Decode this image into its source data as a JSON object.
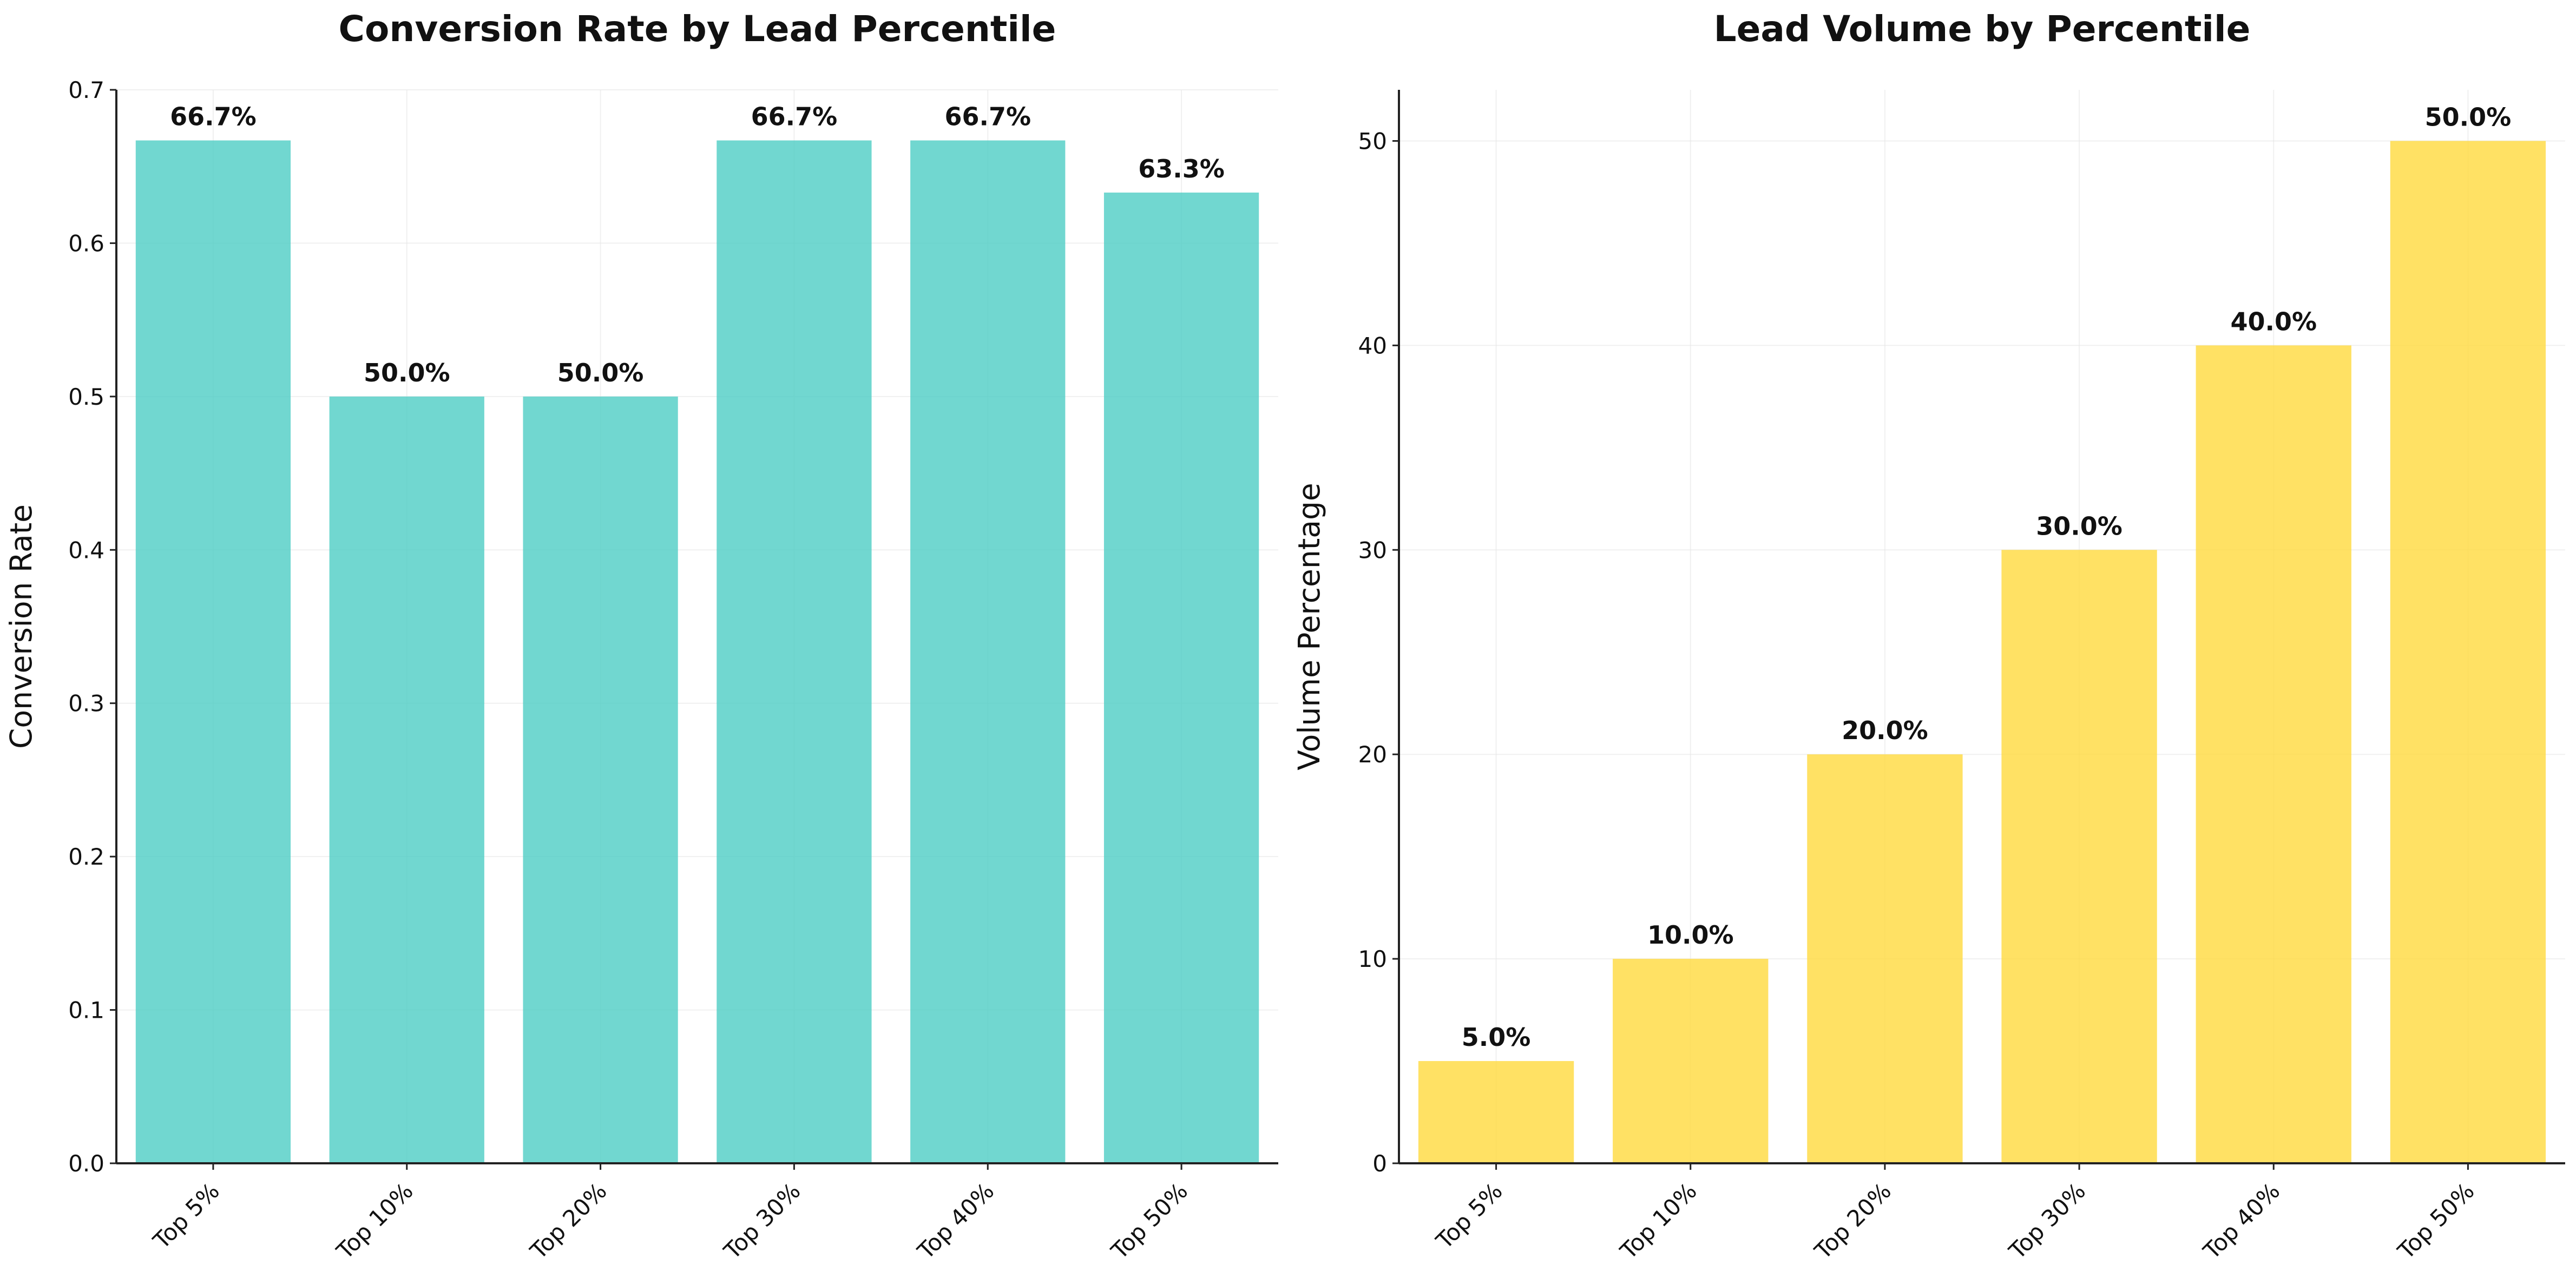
{
  "chart_data": [
    {
      "type": "bar",
      "title": "Conversion Rate by Lead Percentile",
      "xlabel": "",
      "ylabel": "Conversion Rate",
      "categories": [
        "Top 5%",
        "Top 10%",
        "Top 20%",
        "Top 30%",
        "Top 40%",
        "Top 50%"
      ],
      "values": [
        0.667,
        0.5,
        0.5,
        0.667,
        0.667,
        0.633
      ],
      "data_labels": [
        "66.7%",
        "50.0%",
        "50.0%",
        "66.7%",
        "66.7%",
        "63.3%"
      ],
      "ylim": [
        0,
        0.7
      ],
      "yticks": [
        0.0,
        0.1,
        0.2,
        0.3,
        0.4,
        0.5,
        0.6,
        0.7
      ],
      "ytick_labels": [
        "0.0",
        "0.1",
        "0.2",
        "0.3",
        "0.4",
        "0.5",
        "0.6",
        "0.7"
      ],
      "color": "#4ecdc4",
      "grid": true
    },
    {
      "type": "bar",
      "title": "Lead Volume by Percentile",
      "xlabel": "",
      "ylabel": "Volume Percentage",
      "categories": [
        "Top 5%",
        "Top 10%",
        "Top 20%",
        "Top 30%",
        "Top 40%",
        "Top 50%"
      ],
      "values": [
        5,
        10,
        20,
        30,
        40,
        50
      ],
      "data_labels": [
        "5.0%",
        "10.0%",
        "20.0%",
        "30.0%",
        "40.0%",
        "50.0%"
      ],
      "ylim": [
        0,
        52.5
      ],
      "yticks": [
        0,
        10,
        20,
        30,
        40,
        50
      ],
      "ytick_labels": [
        "0",
        "10",
        "20",
        "30",
        "40",
        "50"
      ],
      "color": "#ffd93d",
      "grid": true
    }
  ]
}
